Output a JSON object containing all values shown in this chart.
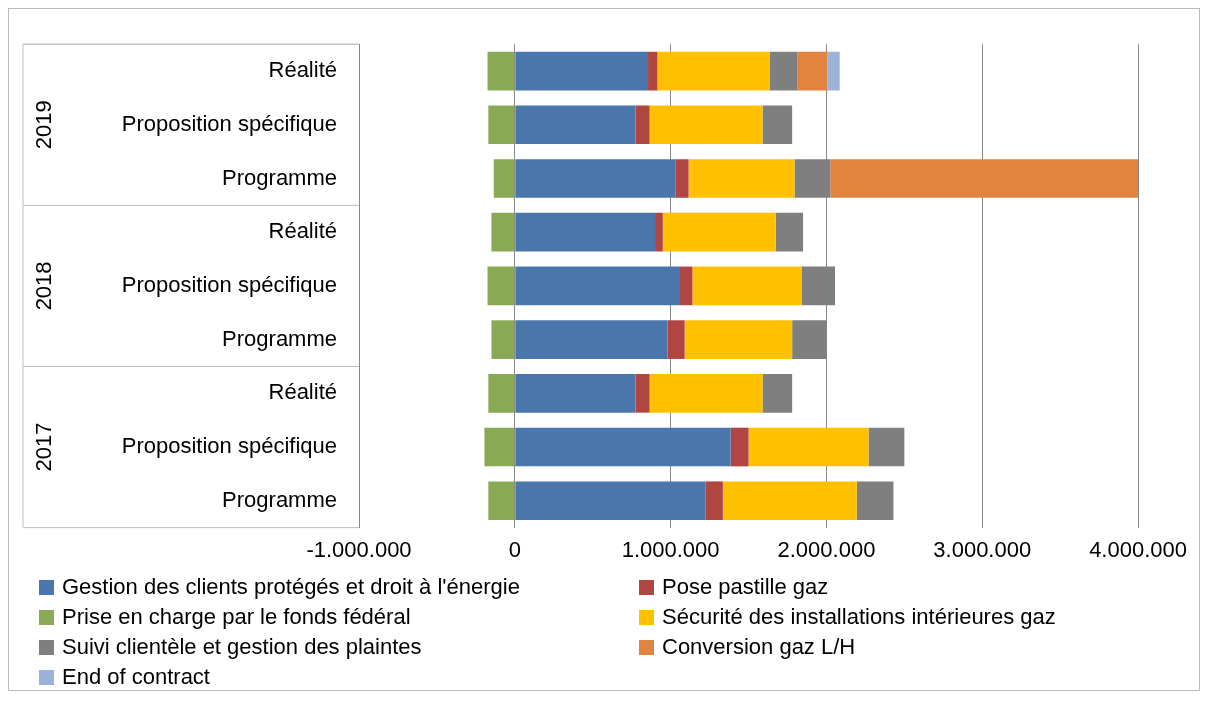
{
  "chart_data": {
    "type": "bar",
    "orientation": "horizontal",
    "stacked": true,
    "categories": [
      "Réalité",
      "Proposition spécifique",
      "Programme",
      "Réalité",
      "Proposition spécifique",
      "Programme",
      "Réalité",
      "Proposition spécifique",
      "Programme"
    ],
    "annotations": [
      "2019",
      "2018",
      "2017"
    ],
    "series": [
      {
        "name": "Gestion des clients protégés et droit à l'énergie",
        "color": "#4a76ab",
        "values": [
          855000,
          775000,
          1030000,
          900000,
          1060000,
          980000,
          775000,
          1385000,
          1225000
        ]
      },
      {
        "name": "Pose pastille gaz",
        "color": "#b14541",
        "values": [
          60000,
          90000,
          85000,
          50000,
          80000,
          110000,
          90000,
          115000,
          110000
        ]
      },
      {
        "name": "Prise en charge par le fonds fédéral",
        "color": "#8aa955",
        "values": [
          -175000,
          -170000,
          -135000,
          -150000,
          -175000,
          -150000,
          -170000,
          -195000,
          -170000
        ]
      },
      {
        "name": "Sécurité des installations intérieures gaz",
        "color": "#ffc000",
        "values": [
          720000,
          725000,
          680000,
          725000,
          700000,
          690000,
          725000,
          770000,
          860000
        ]
      },
      {
        "name": "Suivi clientèle et gestion des plaintes",
        "color": "#7f7f7f",
        "values": [
          180000,
          190000,
          230000,
          175000,
          215000,
          220000,
          190000,
          230000,
          235000
        ]
      },
      {
        "name": "Conversion gaz L/H",
        "color": "#e0843f",
        "values": [
          190000,
          null,
          1990000,
          null,
          null,
          null,
          null,
          null,
          null
        ]
      },
      {
        "name": "End of contract",
        "color": "#9cb3d9",
        "values": [
          80000,
          null,
          null,
          null,
          null,
          null,
          null,
          null,
          null
        ]
      }
    ],
    "xlim": [
      -1000000,
      4000000
    ],
    "xticks": [
      {
        "value": -1000000,
        "label": "-1.000.000"
      },
      0,
      {
        "value": 1000000,
        "label": "1.000.000"
      },
      {
        "value": 2000000,
        "label": "2.000.000"
      },
      {
        "value": 3000000,
        "label": "3.000.000"
      },
      {
        "value": 4000000,
        "label": "4.000.000"
      }
    ],
    "grid": "x",
    "legend": "bottom"
  }
}
